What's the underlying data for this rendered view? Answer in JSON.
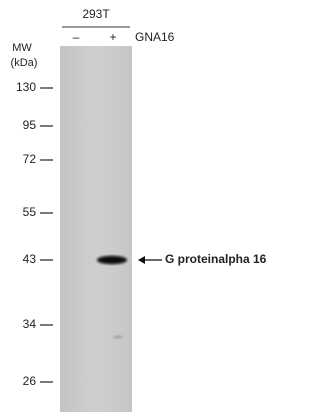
{
  "header": {
    "cell_line": "293T",
    "lanes": [
      "–",
      "+"
    ],
    "protein": "GNA16"
  },
  "mw_label": [
    "MW",
    "(kDa)"
  ],
  "markers": [
    130,
    95,
    72,
    55,
    43,
    34,
    26
  ],
  "band_label": "G proteinalpha 16"
}
